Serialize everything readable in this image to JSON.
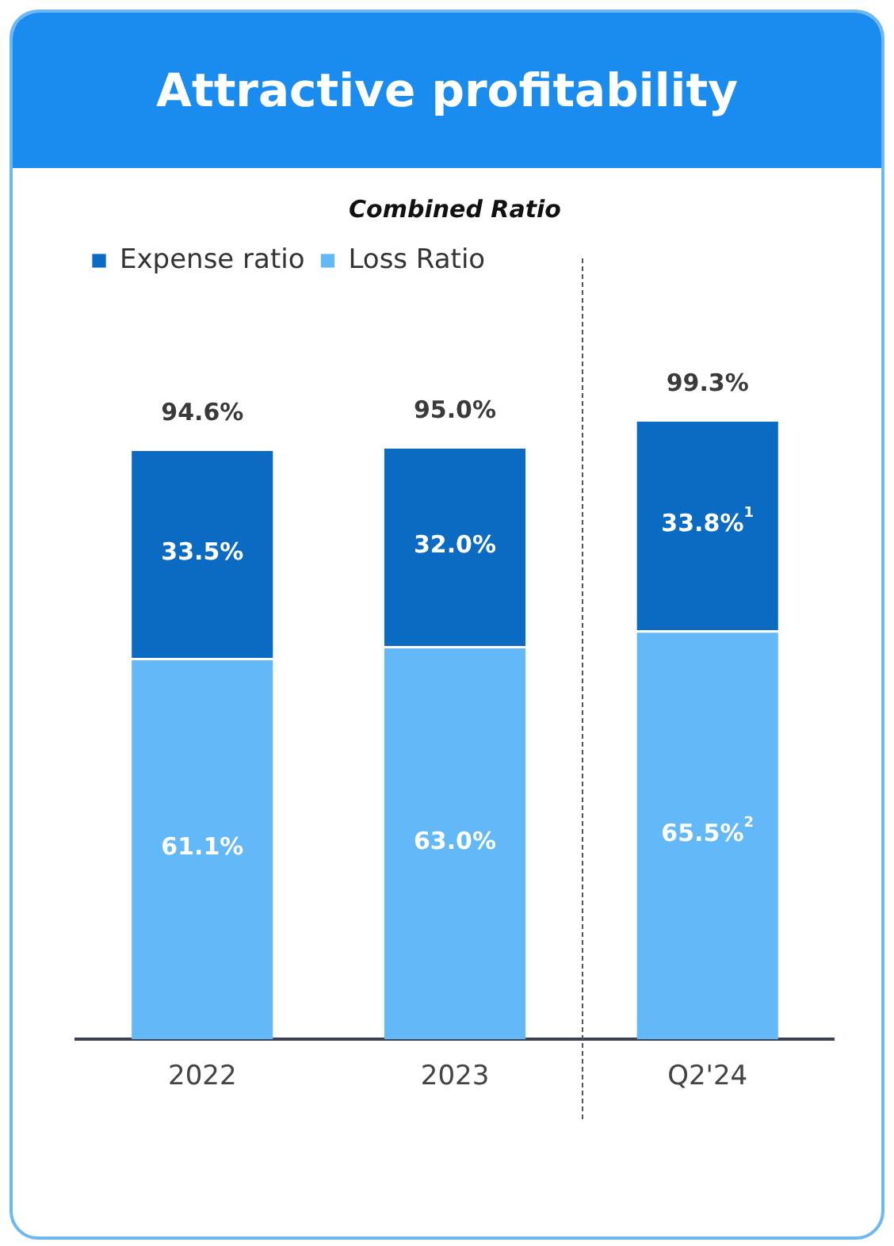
{
  "chart_data": {
    "type": "bar",
    "title": "Attractive profitability",
    "subtitle": "Combined Ratio",
    "categories": [
      "2022",
      "2023",
      "Q2'24"
    ],
    "stacked": true,
    "legend": "top left",
    "tick_labels": "x",
    "grid": false,
    "series": [
      {
        "name": "Loss Ratio",
        "color": "#63b8f7",
        "values": [
          61.1,
          63.0,
          65.5
        ],
        "value_labels": [
          "61.1%",
          "63.0%",
          "65.5%$^{2}$"
        ]
      },
      {
        "name": "Expense ratio",
        "color": "#0b6bc2",
        "values": [
          33.5,
          32.0,
          33.8
        ],
        "value_labels": [
          "33.5%",
          "32.0%",
          "33.8%$^{1}$"
        ]
      }
    ],
    "totals": [
      "94.6%",
      "95.0%",
      "99.3%"
    ]
  }
}
